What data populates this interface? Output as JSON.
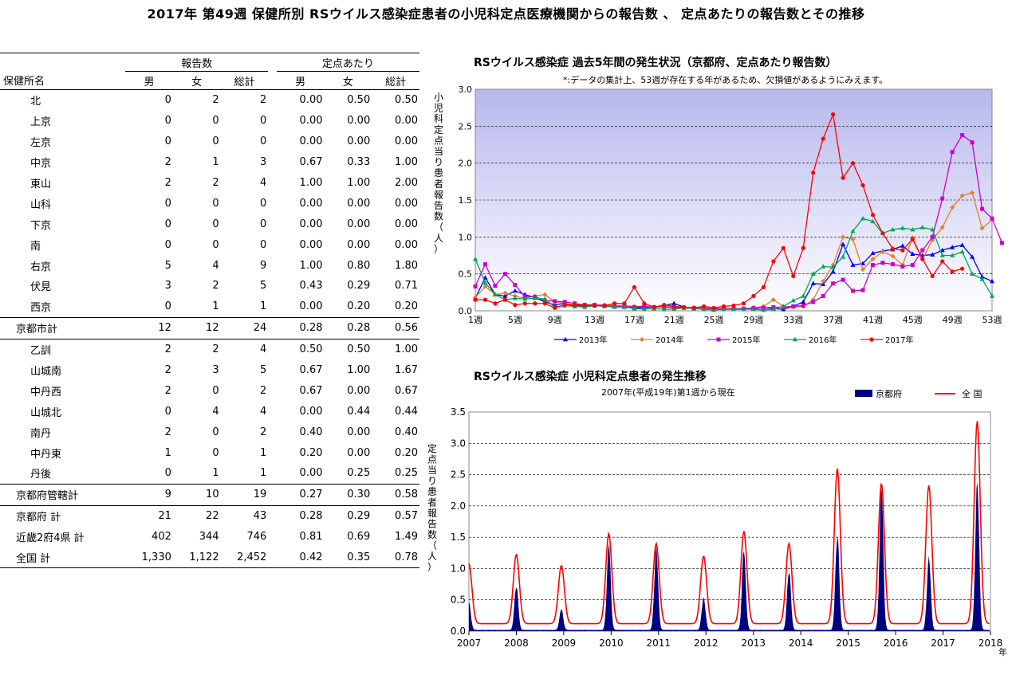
{
  "page_title": "2017年 第49週 保健所別 RSウイルス感染症患者の小児科定点医療機関からの報告数 、 定点あたりの報告数とその推移",
  "table": {
    "group_headers": [
      "報告数",
      "定点あたり"
    ],
    "col_headers": [
      "保健所名",
      "男",
      "女",
      "総計",
      "男",
      "女",
      "総計"
    ],
    "rows": [
      {
        "name": "北",
        "kind": "ward",
        "v": [
          "0",
          "2",
          "2",
          "0.00",
          "0.50",
          "0.50"
        ]
      },
      {
        "name": "上京",
        "kind": "ward",
        "v": [
          "0",
          "0",
          "0",
          "0.00",
          "0.00",
          "0.00"
        ]
      },
      {
        "name": "左京",
        "kind": "ward",
        "v": [
          "0",
          "0",
          "0",
          "0.00",
          "0.00",
          "0.00"
        ]
      },
      {
        "name": "中京",
        "kind": "ward",
        "v": [
          "2",
          "1",
          "3",
          "0.67",
          "0.33",
          "1.00"
        ]
      },
      {
        "name": "東山",
        "kind": "ward",
        "v": [
          "2",
          "2",
          "4",
          "1.00",
          "1.00",
          "2.00"
        ]
      },
      {
        "name": "山科",
        "kind": "ward",
        "v": [
          "0",
          "0",
          "0",
          "0.00",
          "0.00",
          "0.00"
        ]
      },
      {
        "name": "下京",
        "kind": "ward",
        "v": [
          "0",
          "0",
          "0",
          "0.00",
          "0.00",
          "0.00"
        ]
      },
      {
        "name": "南",
        "kind": "ward",
        "v": [
          "0",
          "0",
          "0",
          "0.00",
          "0.00",
          "0.00"
        ]
      },
      {
        "name": "右京",
        "kind": "ward",
        "v": [
          "5",
          "4",
          "9",
          "1.00",
          "0.80",
          "1.80"
        ]
      },
      {
        "name": "伏見",
        "kind": "ward",
        "v": [
          "3",
          "2",
          "5",
          "0.43",
          "0.29",
          "0.71"
        ]
      },
      {
        "name": "西京",
        "kind": "ward",
        "v": [
          "0",
          "1",
          "1",
          "0.00",
          "0.20",
          "0.20"
        ]
      },
      {
        "name": "京都市計",
        "kind": "subtotal",
        "v": [
          "12",
          "12",
          "24",
          "0.28",
          "0.28",
          "0.56"
        ]
      },
      {
        "name": "乙訓",
        "kind": "ward",
        "v": [
          "2",
          "2",
          "4",
          "0.50",
          "0.50",
          "1.00"
        ]
      },
      {
        "name": "山城南",
        "kind": "ward",
        "v": [
          "2",
          "3",
          "5",
          "0.67",
          "1.00",
          "1.67"
        ]
      },
      {
        "name": "中丹西",
        "kind": "ward",
        "v": [
          "2",
          "0",
          "2",
          "0.67",
          "0.00",
          "0.67"
        ]
      },
      {
        "name": "山城北",
        "kind": "ward",
        "v": [
          "0",
          "4",
          "4",
          "0.00",
          "0.44",
          "0.44"
        ]
      },
      {
        "name": "南丹",
        "kind": "ward",
        "v": [
          "2",
          "0",
          "2",
          "0.40",
          "0.00",
          "0.40"
        ]
      },
      {
        "name": "中丹東",
        "kind": "ward",
        "v": [
          "1",
          "0",
          "1",
          "0.20",
          "0.00",
          "0.20"
        ]
      },
      {
        "name": "丹後",
        "kind": "ward",
        "v": [
          "0",
          "1",
          "1",
          "0.00",
          "0.25",
          "0.25"
        ]
      },
      {
        "name": "京都府管轄計",
        "kind": "subtotal",
        "v": [
          "9",
          "10",
          "19",
          "0.27",
          "0.30",
          "0.58"
        ]
      },
      {
        "name": "京都府 計",
        "kind": "total",
        "v": [
          "21",
          "22",
          "43",
          "0.28",
          "0.29",
          "0.57"
        ]
      },
      {
        "name": "近畿2府4県 計",
        "kind": "total",
        "v": [
          "402",
          "344",
          "746",
          "0.81",
          "0.69",
          "1.49"
        ]
      },
      {
        "name": "全国 計",
        "kind": "total_last",
        "v": [
          "1,330",
          "1,122",
          "2,452",
          "0.42",
          "0.35",
          "0.78"
        ]
      }
    ]
  },
  "chart_data": [
    {
      "type": "line",
      "title": "RSウイルス感染症 過去5年間の発生状況（京都府、定点あたり報告数）",
      "note": "*:データの集計上、53週が存在する年があるため、欠損値があるようにみえます。",
      "ylabel": "小児科定点当り患者報告数（人）",
      "ylim": [
        0,
        3.0
      ],
      "yticks": [
        "0.0",
        "0.5",
        "1.0",
        "1.5",
        "2.0",
        "2.5",
        "3.0"
      ],
      "xticks": [
        {
          "week": 1,
          "label": "1週"
        },
        {
          "week": 5,
          "label": "5週"
        },
        {
          "week": 9,
          "label": "9週"
        },
        {
          "week": 13,
          "label": "13週"
        },
        {
          "week": 17,
          "label": "17週"
        },
        {
          "week": 21,
          "label": "21週"
        },
        {
          "week": 25,
          "label": "25週"
        },
        {
          "week": 29,
          "label": "29週"
        },
        {
          "week": 33,
          "label": "33週"
        },
        {
          "week": 37,
          "label": "37週"
        },
        {
          "week": 41,
          "label": "41週"
        },
        {
          "week": 45,
          "label": "45週"
        },
        {
          "week": 49,
          "label": "49週"
        },
        {
          "week": 53,
          "label": "53週"
        }
      ],
      "grid": true,
      "legend": "bottom",
      "series": [
        {
          "name": "2013年",
          "color": "#0000ff",
          "marker": "triangle",
          "values": [
            0.17,
            0.45,
            0.22,
            0.2,
            0.27,
            0.22,
            0.18,
            0.12,
            0.08,
            0.1,
            0.06,
            0.07,
            0.07,
            0.08,
            0.06,
            0.05,
            0.04,
            0.04,
            0.05,
            0.07,
            0.1,
            0.05,
            0.04,
            0.03,
            0.03,
            0.02,
            0.02,
            0.02,
            0.03,
            0.04,
            0.03,
            0.02,
            0.06,
            0.12,
            0.37,
            0.36,
            0.53,
            0.9,
            0.62,
            0.64,
            0.78,
            0.81,
            0.83,
            0.88,
            0.77,
            0.75,
            0.76,
            0.82,
            0.86,
            0.89,
            0.73,
            0.46,
            0.4
          ]
        },
        {
          "name": "2014年",
          "color": "#e67e22",
          "marker": "diamond",
          "values": [
            0.18,
            0.33,
            0.22,
            0.24,
            0.2,
            0.17,
            0.2,
            0.22,
            0.12,
            0.1,
            0.08,
            0.08,
            0.08,
            0.08,
            0.07,
            0.07,
            0.06,
            0.06,
            0.05,
            0.06,
            0.05,
            0.05,
            0.04,
            0.04,
            0.03,
            0.03,
            0.03,
            0.03,
            0.04,
            0.06,
            0.15,
            0.06,
            0.05,
            0.06,
            0.15,
            0.4,
            0.62,
            1.0,
            0.97,
            0.56,
            0.7,
            0.8,
            0.74,
            0.62,
            0.99,
            0.7,
            0.96,
            1.13,
            1.4,
            1.56,
            1.6,
            1.12,
            1.23
          ]
        },
        {
          "name": "2015年",
          "color": "#cc00cc",
          "marker": "square",
          "values": [
            0.33,
            0.63,
            0.34,
            0.5,
            0.35,
            0.19,
            0.19,
            0.14,
            0.13,
            0.12,
            0.1,
            0.08,
            0.08,
            0.07,
            0.06,
            0.06,
            0.05,
            0.06,
            0.05,
            0.05,
            0.04,
            0.04,
            0.04,
            0.03,
            0.03,
            0.03,
            0.03,
            0.03,
            0.04,
            0.04,
            0.05,
            0.05,
            0.06,
            0.07,
            0.12,
            0.2,
            0.37,
            0.42,
            0.27,
            0.28,
            0.62,
            0.65,
            0.63,
            0.6,
            0.62,
            0.82,
            1.0,
            1.52,
            2.15,
            2.38,
            2.28,
            1.38,
            1.25,
            0.92
          ]
        },
        {
          "name": "2016年",
          "color": "#00a651",
          "marker": "triangle",
          "values": [
            0.7,
            0.38,
            0.22,
            0.15,
            0.17,
            0.16,
            0.17,
            0.16,
            0.05,
            0.07,
            0.06,
            0.05,
            0.07,
            0.06,
            0.05,
            0.05,
            0.03,
            0.02,
            0.03,
            0.02,
            0.02,
            0.04,
            0.03,
            0.02,
            0.01,
            0.02,
            0.02,
            0.02,
            0.02,
            0.01,
            0.02,
            0.06,
            0.14,
            0.2,
            0.5,
            0.6,
            0.59,
            0.73,
            1.08,
            1.25,
            1.21,
            1.05,
            1.1,
            1.12,
            1.1,
            1.13,
            1.1,
            0.75,
            0.75,
            0.8,
            0.5,
            0.43,
            0.2
          ]
        },
        {
          "name": "2017年",
          "color": "#ff0000",
          "marker": "circle",
          "values": [
            0.15,
            0.15,
            0.1,
            0.15,
            0.08,
            0.1,
            0.1,
            0.1,
            0.04,
            0.08,
            0.08,
            0.08,
            0.07,
            0.07,
            0.1,
            0.1,
            0.32,
            0.1,
            0.05,
            0.08,
            0.06,
            0.05,
            0.04,
            0.06,
            0.04,
            0.06,
            0.07,
            0.1,
            0.2,
            0.32,
            0.67,
            0.85,
            0.47,
            0.85,
            1.87,
            2.33,
            2.66,
            1.8,
            2.0,
            1.7,
            1.3,
            1.05,
            0.84,
            0.82,
            0.97,
            0.7,
            0.47,
            0.67,
            0.53,
            0.57
          ]
        }
      ]
    },
    {
      "type": "area",
      "title": "RSウイルス感染症 小児科定点患者の発生推移",
      "subtitle": "2007年(平成19年)第1週から現在",
      "ylabel": "定点当り患者報告数（人）",
      "ylim": [
        0,
        3.5
      ],
      "yticks": [
        "0.0",
        "0.5",
        "1.0",
        "1.5",
        "2.0",
        "2.5",
        "3.0",
        "3.5"
      ],
      "xticks": [
        "2007",
        "2008",
        "2009",
        "2010",
        "2011",
        "2012",
        "2013",
        "2014",
        "2015",
        "2016",
        "2017",
        "2018"
      ],
      "xunit": "年",
      "grid": true,
      "legend": "top-right",
      "series": [
        {
          "name": "京都府",
          "color": "#000080",
          "style": "area",
          "peaks": [
            {
              "year": 2007.0,
              "value": 0.45
            },
            {
              "year": 2008.0,
              "value": 0.75
            },
            {
              "year": 2008.95,
              "value": 0.35
            },
            {
              "year": 2009.95,
              "value": 1.4
            },
            {
              "year": 2010.95,
              "value": 1.35
            },
            {
              "year": 2011.95,
              "value": 0.55
            },
            {
              "year": 2012.8,
              "value": 1.3
            },
            {
              "year": 2013.75,
              "value": 1.0
            },
            {
              "year": 2014.77,
              "value": 1.6
            },
            {
              "year": 2015.7,
              "value": 2.3
            },
            {
              "year": 2016.7,
              "value": 1.2
            },
            {
              "year": 2017.72,
              "value": 2.45
            }
          ]
        },
        {
          "name": "全 国",
          "color": "#ff0000",
          "style": "line",
          "peaks": [
            {
              "year": 2007.0,
              "value": 1.08
            },
            {
              "year": 2008.0,
              "value": 1.23
            },
            {
              "year": 2008.95,
              "value": 1.05
            },
            {
              "year": 2009.95,
              "value": 1.56
            },
            {
              "year": 2010.95,
              "value": 1.4
            },
            {
              "year": 2011.95,
              "value": 1.2
            },
            {
              "year": 2012.8,
              "value": 1.6
            },
            {
              "year": 2013.75,
              "value": 1.4
            },
            {
              "year": 2014.77,
              "value": 2.6
            },
            {
              "year": 2015.7,
              "value": 2.36
            },
            {
              "year": 2016.7,
              "value": 2.33
            },
            {
              "year": 2017.72,
              "value": 3.36
            }
          ]
        }
      ]
    }
  ]
}
